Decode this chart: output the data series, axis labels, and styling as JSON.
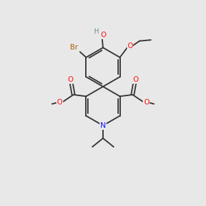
{
  "background_color": "#e8e8e8",
  "bond_color": "#383838",
  "colors": {
    "O": "#ff1010",
    "N": "#1010ff",
    "Br": "#b05a00",
    "H": "#6a9090"
  },
  "figsize": [
    3.0,
    3.0
  ],
  "dpi": 100
}
